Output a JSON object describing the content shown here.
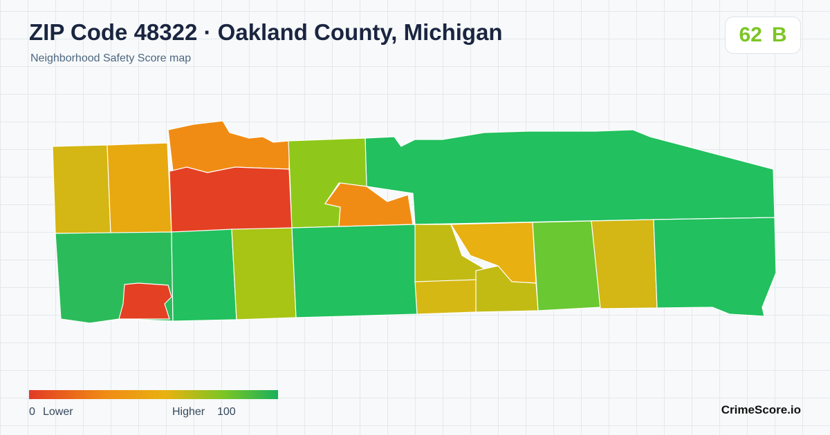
{
  "header": {
    "title": "ZIP Code 48322 · Oakland County, Michigan",
    "subtitle": "Neighborhood Safety Score map"
  },
  "badge": {
    "score": 62,
    "grade": "B"
  },
  "legend": {
    "min": 0,
    "min_label": "Lower",
    "max_label": "Higher",
    "max": 100
  },
  "footer": {
    "brand": "CrimeScore.io"
  }
}
